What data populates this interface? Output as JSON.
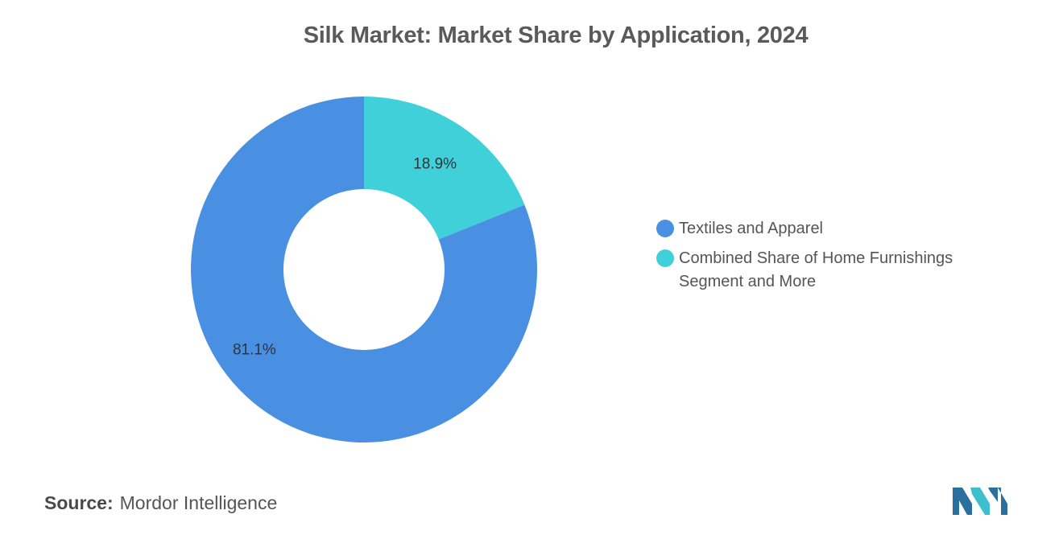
{
  "chart_data": {
    "type": "pie",
    "title": "Silk Market: Market Share by Application, 2024",
    "series": [
      {
        "name": "Textiles and Apparel",
        "value": 81.1,
        "label": "81.1%",
        "color": "#4a90e2"
      },
      {
        "name": "Combined Share of Home Furnishings Segment and More",
        "value": 18.9,
        "label": "18.9%",
        "color": "#40d0da"
      }
    ],
    "donut": true,
    "legend_position": "right"
  },
  "source": {
    "label": "Source:",
    "value": "Mordor Intelligence"
  },
  "logo": {
    "icon": "mordor-intelligence-logo-icon",
    "colors": [
      "#2a6f9e",
      "#3dbfcf"
    ]
  }
}
